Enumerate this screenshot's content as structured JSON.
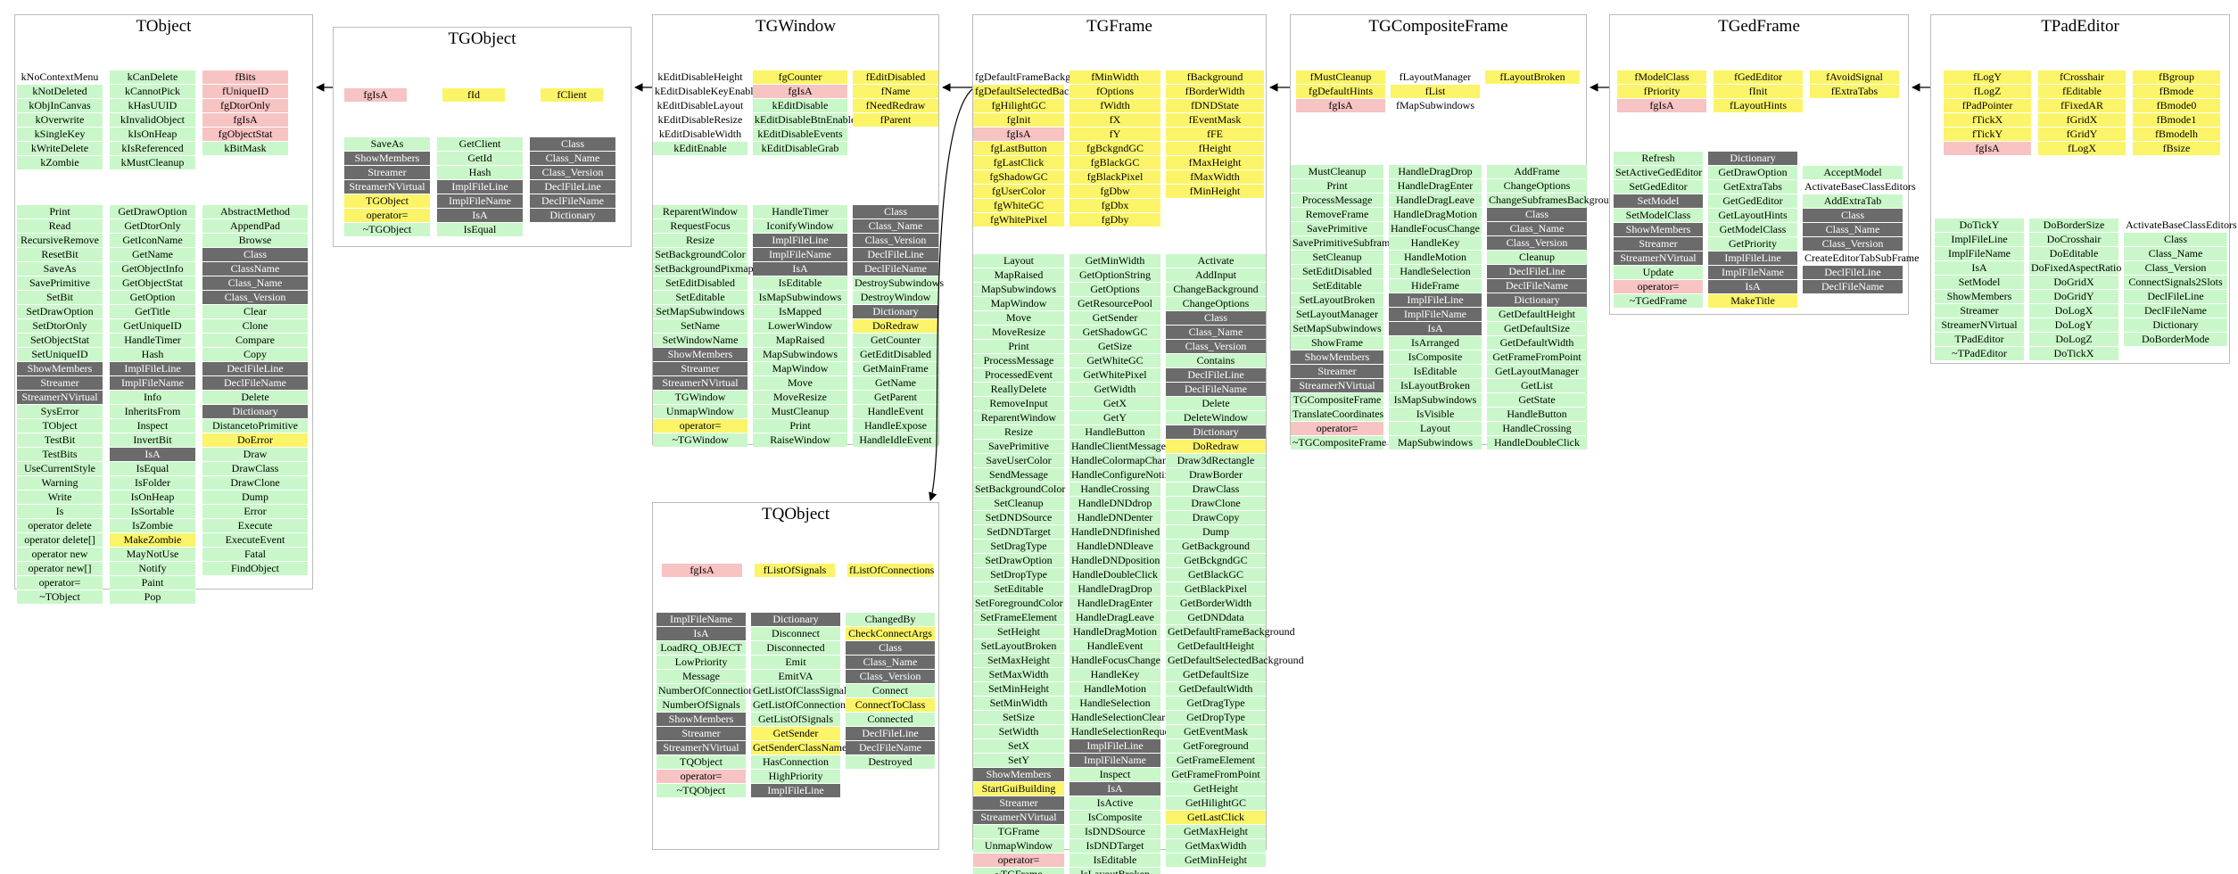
{
  "classes": {
    "TObject": {
      "title": "TObject",
      "fields": [
        [
          "kNoContextMenu|n",
          "kCanDelete|g",
          "fBits|r"
        ],
        [
          "kNotDeleted|g",
          "kCannotPick|g",
          "fUniqueID|r"
        ],
        [
          "kObjInCanvas|g",
          "kHasUUID|g",
          "fgDtorOnly|r"
        ],
        [
          "kOverwrite|g",
          "kInvalidObject|g",
          "fgIsA|r"
        ],
        [
          "kSingleKey|g",
          "kIsOnHeap|g",
          "fgObjectStat|r"
        ],
        [
          "kWriteDelete|g",
          "kIsReferenced|g",
          "kBitMask|g"
        ],
        [
          "kZombie|g",
          "kMustCleanup|g",
          ""
        ]
      ],
      "methods": [
        [
          "Print|g",
          "GetDrawOption|g",
          "AbstractMethod|g"
        ],
        [
          "Read|g",
          "GetDtorOnly|g",
          "AppendPad|g"
        ],
        [
          "RecursiveRemove|g",
          "GetIconName|g",
          "Browse|g"
        ],
        [
          "ResetBit|g",
          "GetName|g",
          "Class|d"
        ],
        [
          "SaveAs|g",
          "GetObjectInfo|g",
          "ClassName|d"
        ],
        [
          "SavePrimitive|g",
          "GetObjectStat|g",
          "Class_Name|d"
        ],
        [
          "SetBit|g",
          "GetOption|g",
          "Class_Version|d"
        ],
        [
          "SetDrawOption|g",
          "GetTitle|g",
          "Clear|g"
        ],
        [
          "SetDtorOnly|g",
          "GetUniqueID|g",
          "Clone|g"
        ],
        [
          "SetObjectStat|g",
          "HandleTimer|g",
          "Compare|g"
        ],
        [
          "SetUniqueID|g",
          "Hash|g",
          "Copy|g"
        ],
        [
          "ShowMembers|d",
          "ImplFileLine|d",
          "DeclFileLine|d"
        ],
        [
          "Streamer|d",
          "ImplFileName|d",
          "DeclFileName|d"
        ],
        [
          "StreamerNVirtual|d",
          "Info|g",
          "Delete|g"
        ],
        [
          "SysError|g",
          "InheritsFrom|g",
          "Dictionary|d"
        ],
        [
          "TObject|g",
          "Inspect|g",
          "DistancetoPrimitive|g"
        ],
        [
          "TestBit|g",
          "InvertBit|g",
          "DoError|y"
        ],
        [
          "TestBits|g",
          "IsA|d",
          "Draw|g"
        ],
        [
          "UseCurrentStyle|g",
          "IsEqual|g",
          "DrawClass|g"
        ],
        [
          "Warning|g",
          "IsFolder|g",
          "DrawClone|g"
        ],
        [
          "Write|g",
          "IsOnHeap|g",
          "Dump|g"
        ],
        [
          "Is|g",
          "IsSortable|g",
          "Error|g"
        ],
        [
          "operator delete|g",
          "IsZombie|g",
          "Execute|g"
        ],
        [
          "operator delete[]|g",
          "MakeZombie|y",
          "ExecuteEvent|g"
        ],
        [
          "operator new|g",
          "MayNotUse|g",
          "Fatal|g"
        ],
        [
          "operator new[]|g",
          "Notify|g",
          "FindObject|g"
        ],
        [
          "operator=|g",
          "Paint|g",
          ""
        ],
        [
          "~TObject|g",
          "Pop|g",
          ""
        ]
      ]
    },
    "TGObject": {
      "title": "TGObject",
      "fields": [
        [
          "fgIsA|r",
          "fId|y",
          "fClient|y"
        ]
      ],
      "methods": [
        [
          "SaveAs|g",
          "GetClient|g",
          "Class|d"
        ],
        [
          "ShowMembers|d",
          "GetId|g",
          "Class_Name|d"
        ],
        [
          "Streamer|d",
          "Hash|g",
          "Class_Version|d"
        ],
        [
          "StreamerNVirtual|d",
          "ImplFileLine|d",
          "DeclFileLine|d"
        ],
        [
          "TGObject|y",
          "ImplFileName|d",
          "DeclFileName|d"
        ],
        [
          "operator=|y",
          "IsA|d",
          "Dictionary|d"
        ],
        [
          "~TGObject|g",
          "IsEqual|g",
          ""
        ]
      ]
    },
    "TGWindow": {
      "title": "TGWindow",
      "fields": [
        [
          "kEditDisableHeight|n",
          "fgCounter|y",
          "fEditDisabled|y"
        ],
        [
          "kEditDisableKeyEnable|n",
          "fgIsA|r",
          "fName|y"
        ],
        [
          "kEditDisableLayout|n",
          "kEditDisable|g",
          "fNeedRedraw|y"
        ],
        [
          "kEditDisableResize|n",
          "kEditDisableBtnEnable|g",
          "fParent|y"
        ],
        [
          "kEditDisableWidth|n",
          "kEditDisableEvents|g",
          ""
        ],
        [
          "kEditEnable|g",
          "kEditDisableGrab|g",
          ""
        ]
      ],
      "methods": [
        [
          "ReparentWindow|g",
          "HandleTimer|g",
          "Class|d"
        ],
        [
          "RequestFocus|g",
          "IconifyWindow|g",
          "Class_Name|d"
        ],
        [
          "Resize|g",
          "ImplFileLine|d",
          "Class_Version|d"
        ],
        [
          "SetBackgroundColor|g",
          "ImplFileName|d",
          "DeclFileLine|d"
        ],
        [
          "SetBackgroundPixmap|g",
          "IsA|d",
          "DeclFileName|d"
        ],
        [
          "SetEditDisabled|g",
          "IsEditable|g",
          "DestroySubwindows|g"
        ],
        [
          "SetEditable|g",
          "IsMapSubwindows|g",
          "DestroyWindow|g"
        ],
        [
          "SetMapSubwindows|g",
          "IsMapped|g",
          "Dictionary|d"
        ],
        [
          "SetName|g",
          "LowerWindow|g",
          "DoRedraw|y"
        ],
        [
          "SetWindowName|g",
          "MapRaised|g",
          "GetCounter|g"
        ],
        [
          "ShowMembers|d",
          "MapSubwindows|g",
          "GetEditDisabled|g"
        ],
        [
          "Streamer|d",
          "MapWindow|g",
          "GetMainFrame|g"
        ],
        [
          "StreamerNVirtual|d",
          "Move|g",
          "GetName|g"
        ],
        [
          "TGWindow|g",
          "MoveResize|g",
          "GetParent|g"
        ],
        [
          "UnmapWindow|g",
          "MustCleanup|g",
          "HandleEvent|g"
        ],
        [
          "operator=|y",
          "Print|g",
          "HandleExpose|g"
        ],
        [
          "~TGWindow|g",
          "RaiseWindow|g",
          "HandleIdleEvent|g"
        ]
      ]
    },
    "TGFrame": {
      "title": "TGFrame",
      "fields": [
        [
          "fgDefaultFrameBackground|n",
          "fMinWidth|y",
          "fBackground|y"
        ],
        [
          "fgDefaultSelectedBackground|y",
          "fOptions|y",
          "fBorderWidth|y"
        ],
        [
          "fgHilightGC|y",
          "fWidth|y",
          "fDNDState|y"
        ],
        [
          "fgInit|y",
          "fX|y",
          "fEventMask|y"
        ],
        [
          "fgIsA|r",
          "fY|y",
          "fFE|y"
        ],
        [
          "fgLastButton|y",
          "fgBckgndGC|y",
          "fHeight|y"
        ],
        [
          "fgLastClick|y",
          "fgBlackGC|y",
          "fMaxHeight|y"
        ],
        [
          "fgShadowGC|y",
          "fgBlackPixel|y",
          "fMaxWidth|y"
        ],
        [
          "fgUserColor|y",
          "fgDbw|y",
          "fMinHeight|y"
        ],
        [
          "fgWhiteGC|y",
          "fgDbx|y",
          ""
        ],
        [
          "fgWhitePixel|y",
          "fgDby|y",
          ""
        ]
      ],
      "methods": [
        [
          "Layout|g",
          "GetMinWidth|g",
          "Activate|g"
        ],
        [
          "MapRaised|g",
          "GetOptionString|g",
          "AddInput|g"
        ],
        [
          "MapSubwindows|g",
          "GetOptions|g",
          "ChangeBackground|g"
        ],
        [
          "MapWindow|g",
          "GetResourcePool|g",
          "ChangeOptions|g"
        ],
        [
          "Move|g",
          "GetSender|g",
          "Class|d"
        ],
        [
          "MoveResize|g",
          "GetShadowGC|g",
          "Class_Name|d"
        ],
        [
          "Print|g",
          "GetSize|g",
          "Class_Version|d"
        ],
        [
          "ProcessMessage|g",
          "GetWhiteGC|g",
          "Contains|g"
        ],
        [
          "ProcessedEvent|g",
          "GetWhitePixel|g",
          "DeclFileLine|d"
        ],
        [
          "ReallyDelete|g",
          "GetWidth|g",
          "DeclFileName|d"
        ],
        [
          "RemoveInput|g",
          "GetX|g",
          "Delete|g"
        ],
        [
          "ReparentWindow|g",
          "GetY|g",
          "DeleteWindow|g"
        ],
        [
          "Resize|g",
          "HandleButton|g",
          "Dictionary|d"
        ],
        [
          "SavePrimitive|g",
          "HandleClientMessage|g",
          "DoRedraw|y"
        ],
        [
          "SaveUserColor|g",
          "HandleColormapChange|g",
          "Draw3dRectangle|g"
        ],
        [
          "SendMessage|g",
          "HandleConfigureNotify|g",
          "DrawBorder|g"
        ],
        [
          "SetBackgroundColor|g",
          "HandleCrossing|g",
          "DrawClass|g"
        ],
        [
          "SetCleanup|g",
          "HandleDNDdrop|g",
          "DrawClone|g"
        ],
        [
          "SetDNDSource|g",
          "HandleDNDenter|g",
          "DrawCopy|g"
        ],
        [
          "SetDNDTarget|g",
          "HandleDNDfinished|g",
          "Dump|g"
        ],
        [
          "SetDragType|g",
          "HandleDNDleave|g",
          "GetBackground|g"
        ],
        [
          "SetDrawOption|g",
          "HandleDNDposition|g",
          "GetBckgndGC|g"
        ],
        [
          "SetDropType|g",
          "HandleDoubleClick|g",
          "GetBlackGC|g"
        ],
        [
          "SetEditable|g",
          "HandleDragDrop|g",
          "GetBlackPixel|g"
        ],
        [
          "SetForegroundColor|g",
          "HandleDragEnter|g",
          "GetBorderWidth|g"
        ],
        [
          "SetFrameElement|g",
          "HandleDragLeave|g",
          "GetDNDdata|g"
        ],
        [
          "SetHeight|g",
          "HandleDragMotion|g",
          "GetDefaultFrameBackground|g"
        ],
        [
          "SetLayoutBroken|g",
          "HandleEvent|g",
          "GetDefaultHeight|g"
        ],
        [
          "SetMaxHeight|g",
          "HandleFocusChange|g",
          "GetDefaultSelectedBackground|g"
        ],
        [
          "SetMaxWidth|g",
          "HandleKey|g",
          "GetDefaultSize|g"
        ],
        [
          "SetMinHeight|g",
          "HandleMotion|g",
          "GetDefaultWidth|g"
        ],
        [
          "SetMinWidth|g",
          "HandleSelection|g",
          "GetDragType|g"
        ],
        [
          "SetSize|g",
          "HandleSelectionClear|g",
          "GetDropType|g"
        ],
        [
          "SetWidth|g",
          "HandleSelectionRequest|g",
          "GetEventMask|g"
        ],
        [
          "SetX|g",
          "ImplFileLine|d",
          "GetForeground|g"
        ],
        [
          "SetY|g",
          "ImplFileName|d",
          "GetFrameElement|g"
        ],
        [
          "ShowMembers|d",
          "Inspect|g",
          "GetFrameFromPoint|g"
        ],
        [
          "StartGuiBuilding|y",
          "IsA|d",
          "GetHeight|g"
        ],
        [
          "Streamer|d",
          "IsActive|g",
          "GetHilightGC|g"
        ],
        [
          "StreamerNVirtual|d",
          "IsComposite|g",
          "GetLastClick|y"
        ],
        [
          "TGFrame|g",
          "IsDNDSource|g",
          "GetMaxHeight|g"
        ],
        [
          "UnmapWindow|g",
          "IsDNDTarget|g",
          "GetMaxWidth|g"
        ],
        [
          "operator=|r",
          "IsEditable|g",
          "GetMinHeight|g"
        ],
        [
          "~TGFrame|g",
          "IsLayoutBroken|g",
          ""
        ]
      ]
    },
    "TGCompositeFrame": {
      "title": "TGCompositeFrame",
      "fields": [
        [
          "fMustCleanup|y",
          "fLayoutManager|n",
          "fLayoutBroken|y"
        ],
        [
          "fgDefaultHints|y",
          "fList|y",
          ""
        ],
        [
          "fgIsA|r",
          "fMapSubwindows|n",
          ""
        ]
      ],
      "methods": [
        [
          "MustCleanup|g",
          "HandleDragDrop|g",
          "AddFrame|g"
        ],
        [
          "Print|g",
          "HandleDragEnter|g",
          "ChangeOptions|g"
        ],
        [
          "ProcessMessage|g",
          "HandleDragLeave|g",
          "ChangeSubframesBackground|g"
        ],
        [
          "RemoveFrame|g",
          "HandleDragMotion|g",
          "Class|d"
        ],
        [
          "SavePrimitive|g",
          "HandleFocusChange|g",
          "Class_Name|d"
        ],
        [
          "SavePrimitiveSubframes|g",
          "HandleKey|g",
          "Class_Version|d"
        ],
        [
          "SetCleanup|g",
          "HandleMotion|g",
          "Cleanup|g"
        ],
        [
          "SetEditDisabled|g",
          "HandleSelection|g",
          "DeclFileLine|d"
        ],
        [
          "SetEditable|g",
          "HideFrame|g",
          "DeclFileName|d"
        ],
        [
          "SetLayoutBroken|g",
          "ImplFileLine|d",
          "Dictionary|d"
        ],
        [
          "SetLayoutManager|g",
          "ImplFileName|d",
          "GetDefaultHeight|g"
        ],
        [
          "SetMapSubwindows|g",
          "IsA|d",
          "GetDefaultSize|g"
        ],
        [
          "ShowFrame|g",
          "IsArranged|g",
          "GetDefaultWidth|g"
        ],
        [
          "ShowMembers|d",
          "IsComposite|g",
          "GetFrameFromPoint|g"
        ],
        [
          "Streamer|d",
          "IsEditable|g",
          "GetLayoutManager|g"
        ],
        [
          "StreamerNVirtual|d",
          "IsLayoutBroken|g",
          "GetList|g"
        ],
        [
          "TGCompositeFrame|g",
          "IsMapSubwindows|g",
          "GetState|g"
        ],
        [
          "TranslateCoordinates|g",
          "IsVisible|g",
          "HandleButton|g"
        ],
        [
          "operator=|r",
          "Layout|g",
          "HandleCrossing|g"
        ],
        [
          "~TGCompositeFrame|g",
          "MapSubwindows|g",
          "HandleDoubleClick|g"
        ]
      ]
    },
    "TGedFrame": {
      "title": "TGedFrame",
      "fields": [
        [
          "fModelClass|y",
          "fGedEditor|y",
          "fAvoidSignal|y"
        ],
        [
          "fPriority|y",
          "fInit|y",
          "fExtraTabs|y"
        ],
        [
          "fgIsA|r",
          "fLayoutHints|y",
          ""
        ]
      ],
      "methods": [
        [
          "Refresh|g",
          "Dictionary|d",
          "|n"
        ],
        [
          "SetActiveGedEditor|g",
          "GetDrawOption|g",
          "AcceptModel|g"
        ],
        [
          "SetGedEditor|g",
          "GetExtraTabs|g",
          "ActivateBaseClassEditors|n"
        ],
        [
          "SetModel|d",
          "GetGedEditor|g",
          "AddExtraTab|g"
        ],
        [
          "SetModelClass|g",
          "GetLayoutHints|g",
          "Class|d"
        ],
        [
          "ShowMembers|d",
          "GetModelClass|g",
          "Class_Name|d"
        ],
        [
          "Streamer|d",
          "GetPriority|g",
          "Class_Version|d"
        ],
        [
          "StreamerNVirtual|d",
          "ImplFileLine|d",
          "CreateEditorTabSubFrame|n"
        ],
        [
          "Update|g",
          "ImplFileName|d",
          "DeclFileLine|d"
        ],
        [
          "operator=|r",
          "IsA|d",
          "DeclFileName|d"
        ],
        [
          "~TGedFrame|g",
          "MakeTitle|y",
          ""
        ]
      ]
    },
    "TPadEditor": {
      "title": "TPadEditor",
      "fields": [
        [
          "fLogY|y",
          "fCrosshair|y",
          "fBgroup|y"
        ],
        [
          "fLogZ|y",
          "fEditable|y",
          "fBmode|y"
        ],
        [
          "fPadPointer|y",
          "fFixedAR|y",
          "fBmode0|y"
        ],
        [
          "fTickX|y",
          "fGridX|y",
          "fBmode1|y"
        ],
        [
          "fTickY|y",
          "fGridY|y",
          "fBmodelh|y"
        ],
        [
          "fgIsA|r",
          "fLogX|y",
          "fBsize|y"
        ]
      ],
      "methods": [
        [
          "DoTickY|g",
          "DoBorderSize|g",
          "ActivateBaseClassEditors|n"
        ],
        [
          "ImplFileLine|g",
          "DoCrosshair|g",
          "Class|g"
        ],
        [
          "ImplFileName|g",
          "DoEditable|g",
          "Class_Name|g"
        ],
        [
          "IsA|g",
          "DoFixedAspectRatio|g",
          "Class_Version|g"
        ],
        [
          "SetModel|g",
          "DoGridX|g",
          "ConnectSignals2Slots|g"
        ],
        [
          "ShowMembers|g",
          "DoGridY|g",
          "DeclFileLine|g"
        ],
        [
          "Streamer|g",
          "DoLogX|g",
          "DeclFileName|g"
        ],
        [
          "StreamerNVirtual|g",
          "DoLogY|g",
          "Dictionary|g"
        ],
        [
          "TPadEditor|g",
          "DoLogZ|g",
          "DoBorderMode|g"
        ],
        [
          "~TPadEditor|g",
          "DoTickX|g",
          ""
        ]
      ]
    },
    "TQObject": {
      "title": "TQObject",
      "fields": [
        [
          "fgIsA|r",
          "fListOfSignals|y",
          "fListOfConnections|y"
        ]
      ],
      "methods": [
        [
          "ImplFileName|d",
          "Dictionary|d",
          "ChangedBy|g"
        ],
        [
          "IsA|d",
          "Disconnect|g",
          "CheckConnectArgs|y"
        ],
        [
          "LoadRQ_OBJECT|g",
          "Disconnected|g",
          "Class|d"
        ],
        [
          "LowPriority|g",
          "Emit|g",
          "Class_Name|d"
        ],
        [
          "Message|g",
          "EmitVA|g",
          "Class_Version|d"
        ],
        [
          "NumberOfConnections|g",
          "GetListOfClassSignals|g",
          "Connect|g"
        ],
        [
          "NumberOfSignals|g",
          "GetListOfConnections|g",
          "ConnectToClass|y"
        ],
        [
          "ShowMembers|d",
          "GetListOfSignals|g",
          "Connected|g"
        ],
        [
          "Streamer|d",
          "GetSender|y",
          "DeclFileLine|d"
        ],
        [
          "StreamerNVirtual|d",
          "GetSenderClassName|y",
          "DeclFileName|d"
        ],
        [
          "TQObject|g",
          "HasConnection|g",
          "Destroyed|g"
        ],
        [
          "operator=|r",
          "HighPriority|g",
          ""
        ],
        [
          "~TQObject|g",
          "ImplFileLine|d",
          ""
        ]
      ]
    }
  }
}
